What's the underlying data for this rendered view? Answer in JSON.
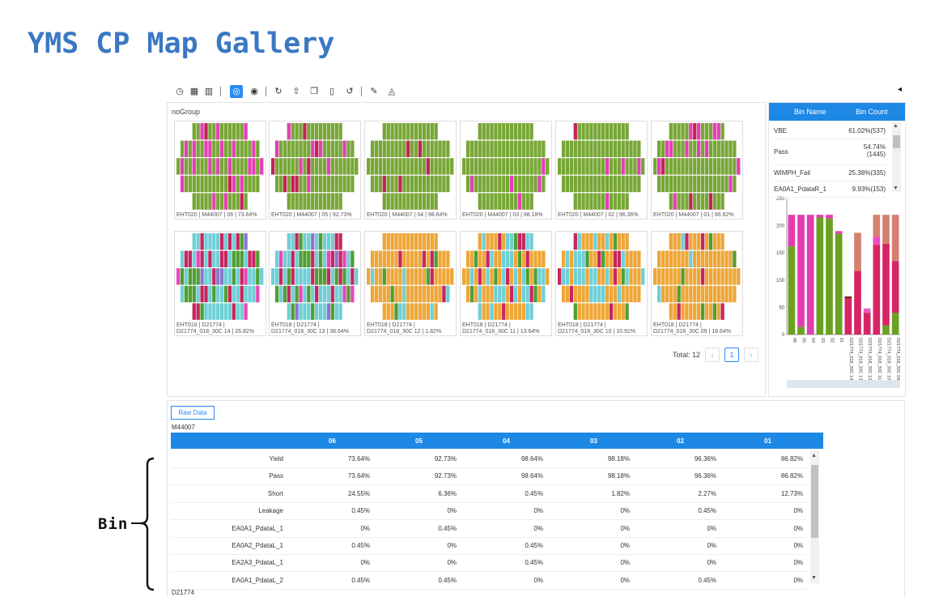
{
  "page": {
    "title": "YMS CP Map Gallery"
  },
  "toolbar": {
    "icons": [
      "clock-icon",
      "calculator-icon",
      "bar-chart-icon",
      "aperture-icon",
      "target-icon",
      "refresh-icon",
      "upload-icon",
      "copy-icon",
      "trash-icon",
      "undo-icon",
      "brush-icon",
      "bucket-icon"
    ],
    "active": "aperture-icon",
    "collapse_glyph": "◂"
  },
  "gallery": {
    "group_label": "noGroup",
    "total_label": "Total: 12",
    "current_page": "1",
    "prev_glyph": "‹",
    "next_glyph": "›",
    "row1": [
      {
        "caption": "EHT020 | M44007 | 06 | 73.64%",
        "scheme": "green_pink",
        "pink": 0.24
      },
      {
        "caption": "EHT020 | M44007 | 05 | 92.73%",
        "scheme": "green_pink",
        "pink": 0.06
      },
      {
        "caption": "EHT020 | M44007 | 04 | 98.64%",
        "scheme": "green_pink",
        "pink": 0.01
      },
      {
        "caption": "EHT020 | M44007 | 03 | 98.18%",
        "scheme": "green_pink",
        "pink": 0.02
      },
      {
        "caption": "EHT020 | M44007 | 02 | 96.36%",
        "scheme": "green_pink",
        "pink": 0.03
      },
      {
        "caption": "EHT020 | M44007 | 01 | 86.82%",
        "scheme": "green_pink",
        "pink": 0.12
      }
    ],
    "row2": [
      {
        "caption": "EHT018 | D21774 |\nD21774_018_30C 14 | 26.82%",
        "scheme": "cyan_mag"
      },
      {
        "caption": "EHT018 | D21774 |\nD21774_018_30C 13 | 38.64%",
        "scheme": "cyan_mag"
      },
      {
        "caption": "EHT018 | D21774 |\nD21774_018_30C 12 | 1.82%",
        "scheme": "orange"
      },
      {
        "caption": "EHT018 | D21774 |\nD21774_018_30C 11 | 13.64%",
        "scheme": "orange_cyan"
      },
      {
        "caption": "EHT018 | D21774 |\nD21774_018_30C 10 | 10.91%",
        "scheme": "orange_cyan"
      },
      {
        "caption": "EHT018 | D21774 |\nD21774_018_30C 09 | 18.64%",
        "scheme": "orange"
      }
    ]
  },
  "bin_panel": {
    "header": {
      "name": "Bin Name",
      "count": "Bin Count"
    },
    "rows": [
      {
        "name": "VBE",
        "count": "61.02%(537)"
      },
      {
        "name": "Pass",
        "count": "54.74%\n(1445)"
      },
      {
        "name": "WIMPH_Fail",
        "count": "25.38%(335)"
      },
      {
        "name": "EA0A1_PdataR_1",
        "count": "9.93%(153)"
      }
    ],
    "scroll_up": "▲",
    "scroll_down": "▼"
  },
  "chart_data": {
    "type": "bar",
    "stacked": true,
    "ylim": [
      0,
      250
    ],
    "yticks": [
      "0",
      "50",
      "100",
      "150",
      "200",
      "250"
    ],
    "categories": [
      "06",
      "05",
      "04",
      "03",
      "02",
      "01",
      "D21774_018_30C 14",
      "D21774_018_30C 13",
      "D21774_018_30C 12",
      "D21774_018_30C 11",
      "D21774_018_30C 10",
      "D21774_018_30C 09"
    ],
    "series": [
      {
        "color": "#6aa121",
        "values": [
          162,
          14,
          0,
          215,
          213,
          185,
          0,
          0,
          0,
          0,
          17,
          40
        ]
      },
      {
        "color": "#e33cb0",
        "values": [
          58,
          206,
          220,
          5,
          7,
          5,
          0,
          0,
          0,
          0,
          0,
          0
        ]
      },
      {
        "color": "#d62565",
        "values": [
          0,
          0,
          0,
          0,
          0,
          0,
          67,
          117,
          40,
          165,
          150,
          95
        ]
      },
      {
        "color": "#6b2a14",
        "values": [
          0,
          0,
          0,
          0,
          0,
          0,
          3,
          0,
          0,
          0,
          0,
          0
        ]
      },
      {
        "color": "#e75fbf",
        "values": [
          0,
          0,
          0,
          0,
          0,
          0,
          0,
          0,
          8,
          0,
          0,
          0
        ]
      },
      {
        "color": "#ee4cc0",
        "values": [
          0,
          0,
          0,
          0,
          0,
          0,
          0,
          0,
          0,
          15,
          0,
          0
        ]
      },
      {
        "color": "#d48070",
        "values": [
          0,
          0,
          0,
          0,
          0,
          0,
          0,
          70,
          0,
          40,
          53,
          85
        ]
      }
    ]
  },
  "table": {
    "raw_button": "Raw Data",
    "lot1": "M44007",
    "lot2": "D21774",
    "columns": [
      "06",
      "05",
      "04",
      "03",
      "02",
      "01"
    ],
    "rows": [
      {
        "label": "Yield",
        "cells": [
          "73.64%",
          "92.73%",
          "98.64%",
          "98.18%",
          "96.36%",
          "86.82%"
        ]
      },
      {
        "label": "Pass",
        "cells": [
          "73.64%",
          "92.73%",
          "98.64%",
          "98.18%",
          "96.36%",
          "86.82%"
        ]
      },
      {
        "label": "Short",
        "cells": [
          "24.55%",
          "6.36%",
          "0.45%",
          "1.82%",
          "2.27%",
          "12.73%"
        ]
      },
      {
        "label": "Leakage",
        "cells": [
          "0.45%",
          "0%",
          "0%",
          "0%",
          "0.45%",
          "0%"
        ]
      },
      {
        "label": "EA0A1_PdataL_1",
        "cells": [
          "0%",
          "0.45%",
          "0%",
          "0%",
          "0%",
          "0%"
        ]
      },
      {
        "label": "EA0A2_PdataL_1",
        "cells": [
          "0.45%",
          "0%",
          "0.45%",
          "0%",
          "0%",
          "0%"
        ]
      },
      {
        "label": "EA2A3_PdataL_1",
        "cells": [
          "0%",
          "0%",
          "0.45%",
          "0%",
          "0%",
          "0%"
        ]
      },
      {
        "label": "EA0A1_PdataL_2",
        "cells": [
          "0.45%",
          "0.45%",
          "0%",
          "0%",
          "0.45%",
          "0%"
        ]
      }
    ]
  },
  "annotation": {
    "label": "Bin"
  }
}
